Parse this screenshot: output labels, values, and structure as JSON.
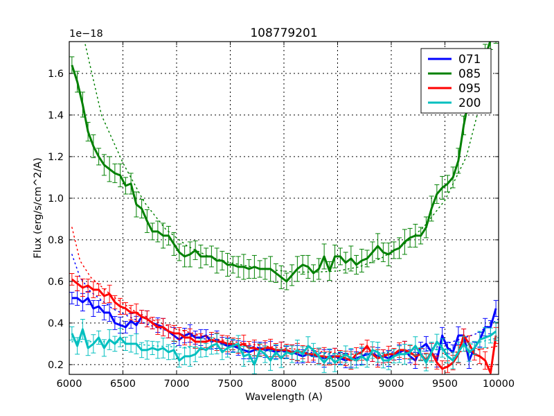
{
  "chart_data": {
    "type": "line",
    "title": "108779201",
    "xlabel": "Wavelength (A)",
    "ylabel": "Flux (erg/s/cm^2/A)",
    "y_offset_label": "1e−18",
    "xlim": [
      6000,
      10000
    ],
    "ylim": [
      0.153,
      1.753
    ],
    "grid": true,
    "legend_position": "upper right",
    "x_ticks": [
      6000,
      6500,
      7000,
      7500,
      8000,
      8500,
      9000,
      9500,
      10000
    ],
    "y_ticks": [
      0.2,
      0.4,
      0.6,
      0.8,
      1.0,
      1.2,
      1.4,
      1.6
    ],
    "y_tick_labels": [
      "0.2",
      "0.4",
      "0.6",
      "0.8",
      "1.0",
      "1.2",
      "1.4",
      "1.6"
    ],
    "x": [
      6025,
      6075,
      6125,
      6175,
      6225,
      6275,
      6325,
      6375,
      6425,
      6475,
      6525,
      6575,
      6625,
      6675,
      6725,
      6775,
      6825,
      6875,
      6925,
      6975,
      7025,
      7075,
      7125,
      7175,
      7225,
      7275,
      7325,
      7375,
      7425,
      7475,
      7525,
      7575,
      7625,
      7675,
      7725,
      7775,
      7825,
      7875,
      7925,
      7975,
      8025,
      8075,
      8125,
      8175,
      8225,
      8275,
      8325,
      8375,
      8425,
      8475,
      8525,
      8575,
      8625,
      8675,
      8725,
      8775,
      8825,
      8875,
      8925,
      8975,
      9025,
      9075,
      9125,
      9175,
      9225,
      9275,
      9325,
      9375,
      9425,
      9475,
      9525,
      9575,
      9625,
      9675,
      9725,
      9775,
      9825,
      9875,
      9925,
      9975
    ],
    "series": [
      {
        "name": "071",
        "color": "#0000ff",
        "values": [
          0.52,
          0.52,
          0.5,
          0.52,
          0.47,
          0.48,
          0.45,
          0.45,
          0.4,
          0.39,
          0.38,
          0.41,
          0.39,
          0.43,
          0.42,
          0.4,
          0.39,
          0.38,
          0.36,
          0.34,
          0.32,
          0.34,
          0.35,
          0.33,
          0.33,
          0.34,
          0.31,
          0.32,
          0.3,
          0.29,
          0.29,
          0.28,
          0.27,
          0.26,
          0.27,
          0.28,
          0.27,
          0.27,
          0.26,
          0.27,
          0.26,
          0.26,
          0.25,
          0.24,
          0.25,
          0.24,
          0.24,
          0.23,
          0.24,
          0.24,
          0.23,
          0.22,
          0.23,
          0.23,
          0.24,
          0.25,
          0.25,
          0.24,
          0.24,
          0.23,
          0.25,
          0.26,
          0.27,
          0.24,
          0.22,
          0.28,
          0.3,
          0.26,
          0.22,
          0.34,
          0.28,
          0.26,
          0.34,
          0.34,
          0.22,
          0.28,
          0.32,
          0.38,
          0.38,
          0.47
        ],
        "errors": 0.035
      },
      {
        "name": "085",
        "color": "#008000",
        "values": [
          1.64,
          1.56,
          1.45,
          1.32,
          1.25,
          1.2,
          1.16,
          1.14,
          1.12,
          1.11,
          1.06,
          1.07,
          0.97,
          0.95,
          0.89,
          0.84,
          0.84,
          0.82,
          0.82,
          0.78,
          0.74,
          0.72,
          0.73,
          0.75,
          0.72,
          0.72,
          0.72,
          0.7,
          0.7,
          0.68,
          0.68,
          0.67,
          0.67,
          0.66,
          0.67,
          0.66,
          0.66,
          0.66,
          0.64,
          0.62,
          0.6,
          0.63,
          0.66,
          0.68,
          0.67,
          0.64,
          0.66,
          0.72,
          0.65,
          0.72,
          0.72,
          0.69,
          0.71,
          0.68,
          0.7,
          0.71,
          0.74,
          0.77,
          0.74,
          0.73,
          0.75,
          0.76,
          0.79,
          0.81,
          0.82,
          0.82,
          0.86,
          0.95,
          1.02,
          1.05,
          1.07,
          1.1,
          1.18,
          1.35,
          1.48,
          1.62,
          1.58,
          1.68,
          1.76,
          1.8
        ],
        "errors": 0.05
      },
      {
        "name": "095",
        "color": "#ff0000",
        "values": [
          0.61,
          0.59,
          0.57,
          0.58,
          0.56,
          0.56,
          0.53,
          0.54,
          0.5,
          0.48,
          0.47,
          0.45,
          0.45,
          0.43,
          0.42,
          0.4,
          0.38,
          0.38,
          0.36,
          0.35,
          0.35,
          0.33,
          0.33,
          0.31,
          0.31,
          0.31,
          0.32,
          0.31,
          0.31,
          0.3,
          0.3,
          0.29,
          0.3,
          0.28,
          0.28,
          0.27,
          0.28,
          0.28,
          0.27,
          0.27,
          0.27,
          0.26,
          0.26,
          0.26,
          0.25,
          0.25,
          0.24,
          0.24,
          0.23,
          0.24,
          0.24,
          0.23,
          0.22,
          0.25,
          0.26,
          0.29,
          0.25,
          0.23,
          0.24,
          0.25,
          0.25,
          0.27,
          0.27,
          0.26,
          0.24,
          0.25,
          0.22,
          0.26,
          0.21,
          0.18,
          0.19,
          0.21,
          0.25,
          0.34,
          0.3,
          0.25,
          0.24,
          0.22,
          0.16,
          0.34
        ],
        "errors": 0.035
      },
      {
        "name": "200",
        "color": "#00bfbf",
        "values": [
          0.35,
          0.29,
          0.37,
          0.28,
          0.3,
          0.33,
          0.28,
          0.32,
          0.3,
          0.33,
          0.3,
          0.3,
          0.3,
          0.27,
          0.27,
          0.28,
          0.27,
          0.28,
          0.26,
          0.27,
          0.22,
          0.24,
          0.24,
          0.25,
          0.28,
          0.27,
          0.29,
          0.3,
          0.26,
          0.28,
          0.29,
          0.3,
          0.24,
          0.25,
          0.2,
          0.27,
          0.25,
          0.22,
          0.26,
          0.23,
          0.26,
          0.25,
          0.27,
          0.25,
          0.29,
          0.27,
          0.24,
          0.21,
          0.24,
          0.21,
          0.23,
          0.25,
          0.23,
          0.22,
          0.24,
          0.22,
          0.27,
          0.26,
          0.22,
          0.22,
          0.24,
          0.25,
          0.25,
          0.26,
          0.29,
          0.25,
          0.21,
          0.26,
          0.31,
          0.28,
          0.24,
          0.22,
          0.26,
          0.3,
          0.26,
          0.28,
          0.32,
          0.33,
          0.34,
          0.36
        ],
        "errors": 0.04
      }
    ],
    "model_curves": [
      {
        "name": "071 model",
        "color": "#0000ff",
        "style": "dotted",
        "x": [
          6025,
          6100,
          6200,
          6400,
          6600,
          6800,
          7000,
          7400,
          7800,
          8200,
          8600,
          9000,
          9400,
          9800,
          10000
        ],
        "values": [
          0.73,
          0.62,
          0.55,
          0.47,
          0.42,
          0.38,
          0.35,
          0.31,
          0.28,
          0.26,
          0.25,
          0.26,
          0.28,
          0.35,
          0.42
        ]
      },
      {
        "name": "085 model",
        "color": "#008000",
        "style": "dotted",
        "x": [
          6140,
          6300,
          6500,
          6700,
          6900,
          7100,
          7300,
          7500,
          7800,
          8100,
          8300,
          8500,
          8700,
          8900,
          9100,
          9300,
          9500,
          9700,
          9850,
          9920
        ],
        "values": [
          1.76,
          1.4,
          1.17,
          0.98,
          0.85,
          0.77,
          0.72,
          0.69,
          0.66,
          0.645,
          0.645,
          0.65,
          0.67,
          0.71,
          0.77,
          0.86,
          0.99,
          1.2,
          1.5,
          1.75
        ]
      },
      {
        "name": "095 model",
        "color": "#ff0000",
        "style": "dotted",
        "x": [
          6025,
          6100,
          6200,
          6400,
          6600,
          6800,
          7000,
          7400,
          7800,
          8200,
          8600,
          9000,
          9400,
          9800,
          10000
        ],
        "values": [
          0.86,
          0.7,
          0.62,
          0.53,
          0.46,
          0.41,
          0.37,
          0.32,
          0.29,
          0.27,
          0.25,
          0.25,
          0.25,
          0.27,
          0.29
        ]
      },
      {
        "name": "200 model",
        "color": "#00bfbf",
        "style": "dotted",
        "x": [
          6025,
          6400,
          6800,
          7200,
          7600,
          8000,
          8400,
          8800,
          9200,
          9600,
          10000
        ],
        "values": [
          0.31,
          0.31,
          0.29,
          0.28,
          0.27,
          0.26,
          0.25,
          0.25,
          0.26,
          0.28,
          0.33
        ]
      }
    ]
  },
  "legend": {
    "items": [
      {
        "label": "071",
        "color": "#0000ff"
      },
      {
        "label": "085",
        "color": "#008000"
      },
      {
        "label": "095",
        "color": "#ff0000"
      },
      {
        "label": "200",
        "color": "#00bfbf"
      }
    ]
  }
}
